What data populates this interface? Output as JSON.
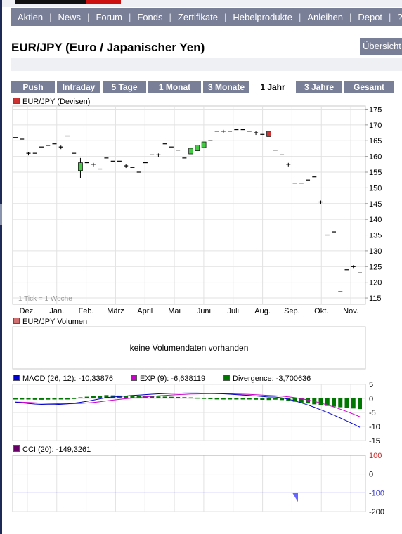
{
  "nav": {
    "items": [
      "Aktien",
      "News",
      "Forum",
      "Fonds",
      "Zertifikate",
      "Hebelprodukte",
      "Anleihen",
      "Depot",
      "?"
    ],
    "overview_label": "Übersicht"
  },
  "page_title": "EUR/JPY (Euro / Japanischer Yen)",
  "tabs": {
    "items": [
      "Push",
      "Intraday",
      "5 Tage",
      "1 Monat",
      "3 Monate",
      "1 Jahr",
      "3 Jahre",
      "Gesamt"
    ],
    "active": "1 Jahr"
  },
  "colors": {
    "nav_bg": "#7a7f98",
    "candle_up": "#44cc44",
    "candle_down": "#cc3333",
    "macd": "#0000cc",
    "exp": "#cc00cc",
    "divergence": "#007700",
    "cci": "#660066",
    "cci_band_upper": "#ff8080",
    "cci_band_lower": "#6666ff"
  },
  "price_chart": {
    "legend": "EUR/JPY (Devisen)",
    "tick_note": "1 Tick = 1 Woche",
    "y_ticks": [
      "175",
      "170",
      "165",
      "160",
      "155",
      "150",
      "145",
      "140",
      "135",
      "130",
      "125",
      "120",
      "115"
    ],
    "months": [
      "Dez.",
      "Jan.",
      "Feb.",
      "März",
      "April",
      "Mai",
      "Juni",
      "Juli",
      "Aug.",
      "Sep.",
      "Okt.",
      "Nov."
    ]
  },
  "volume_panel": {
    "legend": "EUR/JPY Volumen",
    "message": "keine Volumendaten vorhanden"
  },
  "macd_panel": {
    "legend_macd": "MACD (26, 12): -10,33876",
    "legend_exp": "EXP (9): -6,638119",
    "legend_div": "Divergence: -3,700636",
    "y_ticks": [
      "5",
      "0",
      "-5",
      "-10",
      "-15"
    ]
  },
  "cci_panel": {
    "legend": "CCI (20): -149,3261",
    "y_ticks": [
      "100",
      "0",
      "-100",
      "-200"
    ]
  },
  "chart_data": [
    {
      "type": "line",
      "title": "EUR/JPY (Devisen)",
      "x_label": "",
      "y_range": [
        113,
        176
      ],
      "note": "weekly ticks",
      "weekly_close": [
        166,
        165.5,
        161,
        161,
        163,
        163.5,
        164,
        163,
        166.5,
        161,
        161,
        158,
        157.5,
        156,
        159.5,
        158.5,
        158.5,
        157,
        156.5,
        155,
        158,
        160.5,
        160.5,
        164,
        163,
        162,
        159.5,
        162,
        163,
        164,
        165,
        168,
        168,
        168,
        168.5,
        168.5,
        168,
        167.5,
        167,
        162.5,
        162,
        160.5,
        157.5,
        151.5,
        151.5,
        152.5,
        153.5,
        145.5,
        135,
        136,
        117,
        124,
        125,
        123
      ]
    },
    {
      "type": "line",
      "title": "MACD",
      "y_range": [
        -15,
        5
      ],
      "series": [
        {
          "name": "MACD (26, 12)",
          "last": -10.33876
        },
        {
          "name": "EXP (9)",
          "last": -6.638119
        },
        {
          "name": "Divergence",
          "last": -3.700636
        }
      ]
    },
    {
      "type": "line",
      "title": "CCI (20)",
      "y_range": [
        -200,
        100
      ],
      "last": -149.3261
    }
  ]
}
